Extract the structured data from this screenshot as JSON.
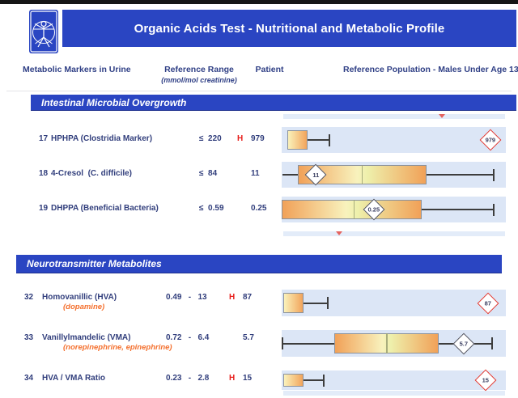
{
  "header": {
    "title": "Organic Acids Test - Nutritional and Metabolic Profile",
    "logo_icon": "vitruvian-man-icon"
  },
  "columns": {
    "markers": "Metabolic Markers in Urine",
    "reference_range": "Reference Range",
    "reference_range_units": "(mmol/mol creatinine)",
    "patient": "Patient",
    "population": "Reference Population - Males Under Age 13"
  },
  "colors": {
    "banner_blue": "#2a45c2",
    "navy_text": "#313e7c",
    "alert_red": "#e8201d",
    "sub_orange": "#f4702e",
    "plot_background": "#dce6f6",
    "box_orange": "#f2a45b",
    "box_pale_yellow": "#faf2bb"
  },
  "sections": [
    {
      "title": "Intestinal Microbial Overgrowth",
      "strip_top": {
        "marker_pct": 71.5
      },
      "strip_bottom": {
        "marker_pct": 25
      },
      "rows": [
        {
          "num": "17",
          "name": "HPHPA (Clostridia Marker)",
          "sub": "",
          "range": "≤  220",
          "flag": "H",
          "patient": "979",
          "plot": {
            "type": "boxplot",
            "box_low_pct": 2.5,
            "box_high_pct": 11.6,
            "median_pct": null,
            "whisker_low_pct": null,
            "cap_low": false,
            "whisker_high_pct": 21.3,
            "gradient": "yellow-orange",
            "marker": {
              "value": "979",
              "pct": 93,
              "style": "alert"
            }
          }
        },
        {
          "num": "18",
          "name": "4-Cresol  (C. difficile)",
          "sub": "",
          "range": "≤  84",
          "flag": "",
          "patient": "11",
          "plot": {
            "type": "boxplot",
            "box_low_pct": 7.2,
            "box_high_pct": 64.6,
            "median_pct": 35.7,
            "whisker_low_pct": 0.5,
            "cap_low": false,
            "whisker_high_pct": 94.6,
            "gradient": "orange-yellow-orange",
            "marker": {
              "value": "11",
              "pct": 15.2,
              "style": "normal"
            }
          }
        },
        {
          "num": "19",
          "name": "DHPPA (Beneficial Bacteria)",
          "sub": "",
          "range": "≤  0.59",
          "flag": "",
          "patient": "0.25",
          "plot": {
            "type": "boxplot",
            "box_low_pct": 0,
            "box_high_pct": 62.5,
            "median_pct": 32.1,
            "whisker_low_pct": null,
            "cap_low": false,
            "whisker_high_pct": 94.6,
            "gradient": "orange-yellow-orange",
            "marker": {
              "value": "0.25",
              "pct": 41.2,
              "style": "normal"
            }
          }
        }
      ]
    },
    {
      "title": "Neurotransmitter Metabolites",
      "strip_bottom": {
        "marker_pct": null
      },
      "rows": [
        {
          "num": "32",
          "name": "Homovanillic (HVA)",
          "sub": "(dopamine)",
          "range": "0.49   -   13",
          "flag": "H",
          "patient": "87",
          "plot": {
            "type": "boxplot",
            "box_low_pct": 0.7,
            "box_high_pct": 9.7,
            "median_pct": null,
            "whisker_low_pct": null,
            "cap_low": false,
            "whisker_high_pct": 20.6,
            "gradient": "yellow-orange",
            "marker": {
              "value": "87",
              "pct": 92,
              "style": "alert"
            }
          }
        },
        {
          "num": "33",
          "name": "Vanillylmandelic (VMA)",
          "sub": "(norepinephrine, epinephrine)",
          "range": "0.72   -   6.4",
          "flag": "",
          "patient": "5.7",
          "plot": {
            "type": "boxplot",
            "box_low_pct": 23.5,
            "box_high_pct": 70,
            "median_pct": 46.6,
            "whisker_low_pct": 0.5,
            "cap_low": true,
            "whisker_high_pct": 93.9,
            "gradient": "orange-yellow-orange",
            "marker": {
              "value": "5.7",
              "pct": 81.2,
              "style": "normal"
            }
          }
        },
        {
          "num": "34",
          "name": "HVA / VMA Ratio",
          "sub": "",
          "range": "0.23   -   2.8",
          "flag": "H",
          "patient": "15",
          "plot": {
            "type": "boxplot",
            "box_low_pct": 0.7,
            "box_high_pct": 9.7,
            "median_pct": null,
            "whisker_low_pct": null,
            "cap_low": false,
            "whisker_high_pct": 18.8,
            "gradient": "yellow-orange",
            "marker": {
              "value": "15",
              "pct": 91,
              "style": "alert"
            }
          }
        }
      ]
    }
  ]
}
